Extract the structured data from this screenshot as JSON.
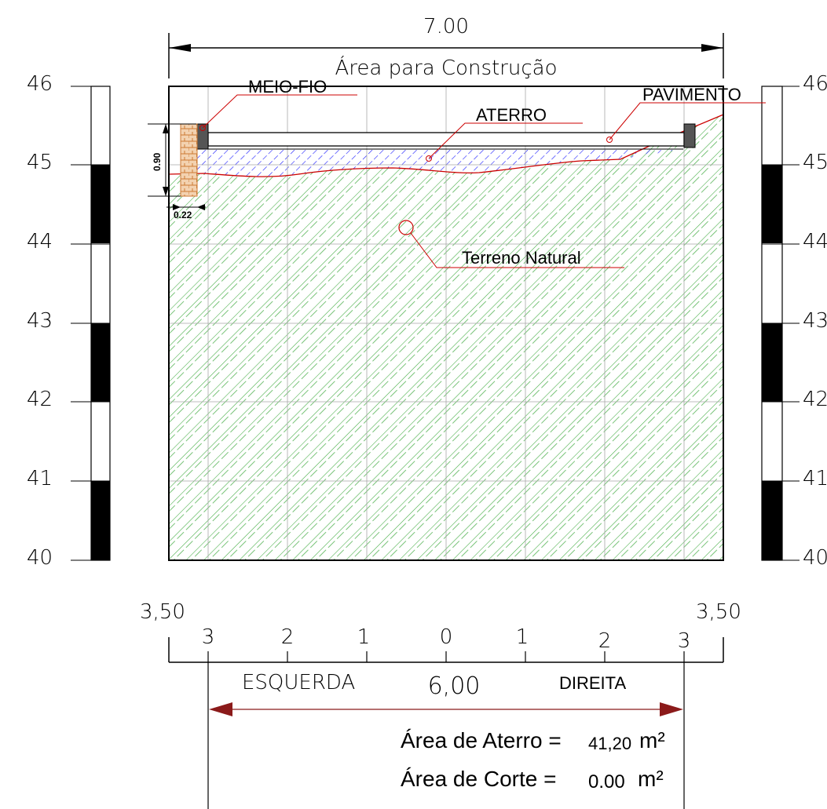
{
  "section": {
    "width_label": "7.00",
    "area_label": "Área para Construção",
    "left_offset_label": "3,50",
    "right_offset_label": "3,50",
    "span_label": "6,00",
    "left_side_label": "ESQUERDA",
    "right_side_label": "DIREITA"
  },
  "elevation_scale": {
    "left_ticks": [
      "46",
      "45",
      "44",
      "43",
      "42",
      "41",
      "40"
    ],
    "right_ticks_visible": [
      "46",
      "45",
      "44",
      "43",
      "42",
      "41",
      "40"
    ]
  },
  "offset_axis": {
    "ticks": [
      "3",
      "2",
      "1",
      "0",
      "1",
      "2",
      "3"
    ]
  },
  "annotations": {
    "curb": "MEIO-FIO",
    "fill": "ATERRO",
    "pavement": "PAVIMENTO",
    "natural_ground": "Terreno Natural",
    "curb_height": "0.90",
    "curb_width": "0.22"
  },
  "results": {
    "fill_area_label": "Área de Aterro =",
    "fill_area_value": "41,20",
    "fill_area_unit": "m²",
    "cut_area_label": "Área de Corte =",
    "cut_area_value": "0.00",
    "cut_area_unit": "m²"
  },
  "colors": {
    "terrain_hatch": "#3faa3f",
    "fill_hatch": "#1a1aff",
    "leader_red": "#cc0000",
    "arrow": "#8b1a1a",
    "curb_brick": "#cc7a33"
  }
}
